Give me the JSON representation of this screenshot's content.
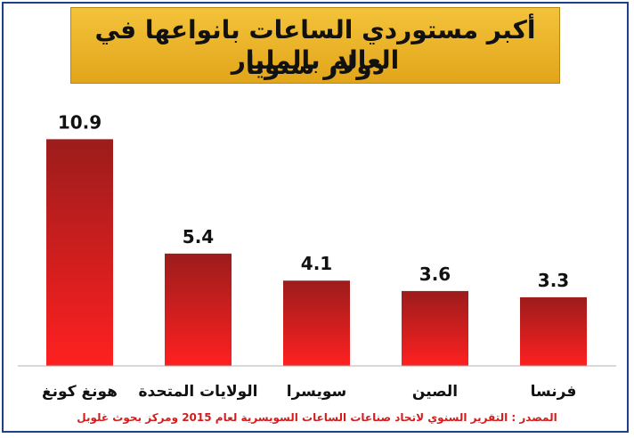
{
  "title": {
    "line1": "أكبر مستوردي الساعات بانواعها في العالم بالمليار",
    "line2": "دولار سنويا"
  },
  "source": "المصدر : التقرير السنوي لاتحاد صناعات الساعات السويسرية لعام 2015 ومركز بحوث غلوبل",
  "colors": {
    "bar_top": "#9c1c1c",
    "bar_bottom": "#ff2020",
    "title_bg": "#eab52b",
    "source_text": "#d51c1c",
    "frame": "#1f3f8f"
  },
  "chart_data": {
    "type": "bar",
    "categories": [
      "هونغ كونغ",
      "الولايات المتحدة",
      "سويسرا",
      "الصين",
      "فرنسا"
    ],
    "values": [
      10.9,
      5.4,
      4.1,
      3.6,
      3.3
    ],
    "data_labels": [
      "10.9",
      "5.4",
      "4.1",
      "3.6",
      "3.3"
    ],
    "ylim": [
      0,
      12.5
    ],
    "grid": false,
    "legend": "none"
  }
}
